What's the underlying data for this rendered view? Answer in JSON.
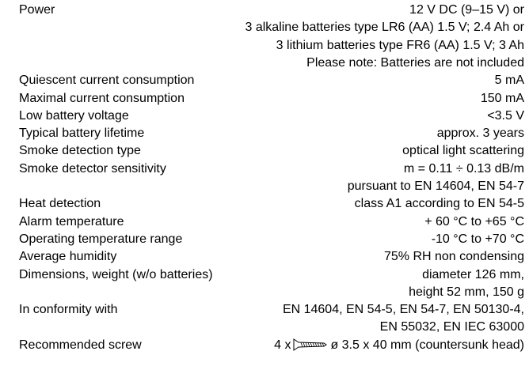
{
  "spec": {
    "rows": [
      {
        "label": "Power",
        "lines": [
          "12 V DC (9–15 V) or",
          "3 alkaline batteries type LR6 (AA) 1.5 V; 2.4 Ah or",
          "3 lithium batteries type FR6 (AA) 1.5 V; 3 Ah",
          "Please note: Batteries are not included"
        ]
      },
      {
        "label": "Quiescent current consumption",
        "lines": [
          "5 mA"
        ]
      },
      {
        "label": "Maximal current consumption",
        "lines": [
          "150 mA"
        ]
      },
      {
        "label": "Low battery voltage",
        "lines": [
          "<3.5 V"
        ]
      },
      {
        "label": "Typical battery lifetime",
        "lines": [
          "approx. 3 years"
        ]
      },
      {
        "label": "Smoke detection type",
        "lines": [
          "optical light scattering"
        ]
      },
      {
        "label": "Smoke detector sensitivity",
        "lines": [
          "m = 0.11 ÷ 0.13 dB/m",
          "pursuant to EN 14604, EN 54-7"
        ]
      },
      {
        "label": "Heat detection",
        "lines": [
          "class A1 according to EN 54-5"
        ]
      },
      {
        "label": "Alarm temperature",
        "lines": [
          "+ 60 °C to +65 °C"
        ]
      },
      {
        "label": "Operating temperature range",
        "lines": [
          "-10 °C to +70 °C"
        ]
      },
      {
        "label": "Average humidity",
        "lines": [
          "75% RH non condensing"
        ]
      },
      {
        "label": "Dimensions, weight (w/o batteries)",
        "lines": [
          "diameter 126 mm,",
          "height 52 mm, 150 g"
        ]
      },
      {
        "label": "In conformity with",
        "lines": [
          "EN 14604, EN 54-5, EN 54-7, EN 50130-4,",
          "EN 55032, EN IEC 63000"
        ]
      },
      {
        "label": "Recommended screw",
        "screw_before": "4 x",
        "screw_after": "ø 3.5 x 40 mm (countersunk head)"
      }
    ]
  }
}
